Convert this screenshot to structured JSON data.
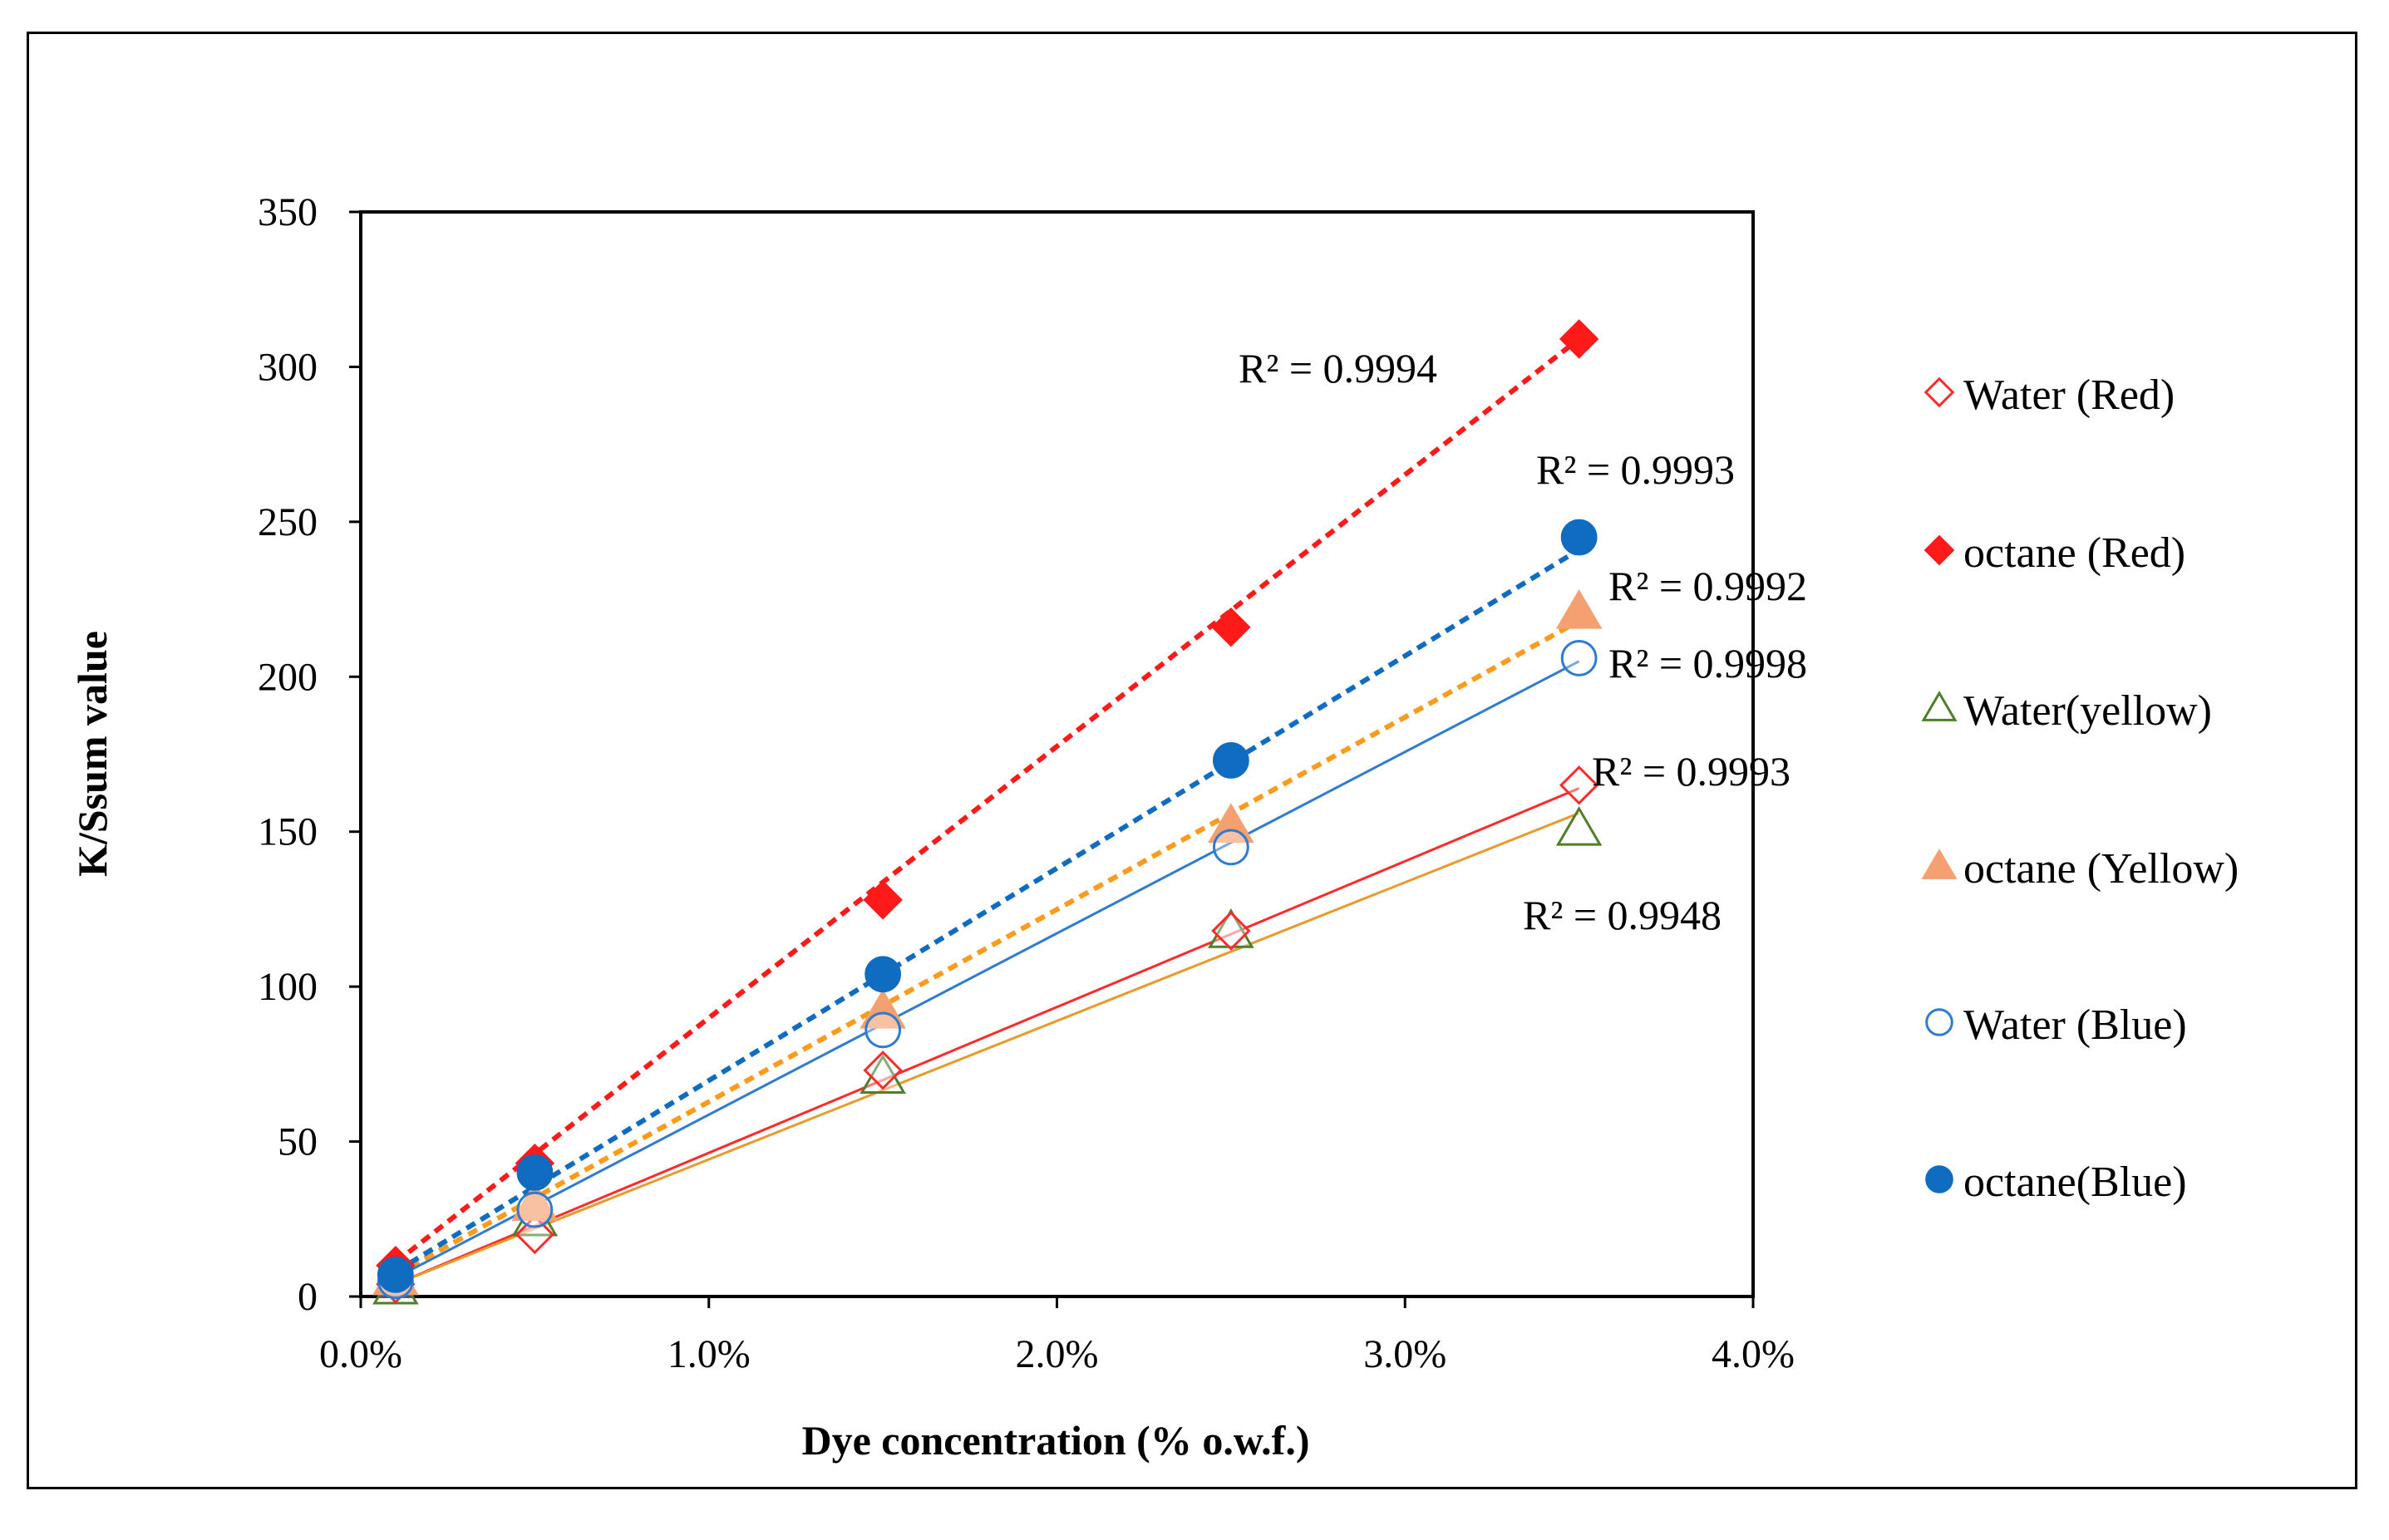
{
  "chart_data": {
    "type": "scatter",
    "title": "",
    "xlabel": "Dye concentration (% o.w.f.)",
    "ylabel": "K/Ssum value",
    "xlim": [
      0,
      0.04
    ],
    "ylim": [
      0,
      350
    ],
    "grid": false,
    "legend_position": "right",
    "x_ticks": [
      "0.0%",
      "1.0%",
      "2.0%",
      "3.0%",
      "4.0%"
    ],
    "x_tick_values": [
      0,
      0.01,
      0.02,
      0.03,
      0.04
    ],
    "y_ticks": [
      "0",
      "50",
      "100",
      "150",
      "200",
      "250",
      "300",
      "350"
    ],
    "y_tick_values": [
      0,
      50,
      100,
      150,
      200,
      250,
      300,
      350
    ],
    "x": [
      0.001,
      0.005,
      0.015,
      0.025,
      0.035
    ],
    "series": [
      {
        "name": "Water (Red)",
        "values": [
          4,
          20,
          73,
          118,
          165
        ],
        "marker": "diamond-open",
        "color": "#ff2b2b",
        "trend": "solid",
        "trend_line": [
          [
            0.001,
            4
          ],
          [
            0.035,
            164
          ]
        ],
        "r2": "R² = 0.9993"
      },
      {
        "name": "octane (Red)",
        "values": [
          10,
          43,
          128,
          216,
          309
        ],
        "marker": "diamond-filled",
        "color": "#ff1a1a",
        "trend": "dashed",
        "trend_line": [
          [
            0.001,
            11
          ],
          [
            0.035,
            309
          ]
        ],
        "r2": "R² = 0.9994"
      },
      {
        "name": "Water(yellow)",
        "values": [
          3,
          25,
          71,
          118,
          151
        ],
        "marker": "triangle-open",
        "color": "#4f7f2a",
        "trend": "solid",
        "trend_line": [
          [
            0.001,
            4
          ],
          [
            0.035,
            156
          ]
        ],
        "r2": "R² = 0.9948"
      },
      {
        "name": "octane (Yellow)",
        "values": [
          6,
          30,
          92,
          152,
          221
        ],
        "marker": "triangle-filled",
        "color": "#f4a070",
        "trend": "dashed",
        "trend_line": [
          [
            0.001,
            7
          ],
          [
            0.035,
            218
          ]
        ],
        "r2": "R² = 0.9992"
      },
      {
        "name": "Water (Blue)",
        "values": [
          5,
          28,
          86,
          145,
          206
        ],
        "marker": "circle-open",
        "color": "#2f7bd1",
        "trend": "solid",
        "trend_line": [
          [
            0.001,
            6
          ],
          [
            0.035,
            205
          ]
        ],
        "r2": "R² = 0.9998"
      },
      {
        "name": "octane(Blue)",
        "values": [
          7,
          40,
          104,
          173,
          245
        ],
        "marker": "circle-filled",
        "color": "#0f6cc0",
        "trend": "dashed",
        "trend_line": [
          [
            0.001,
            8
          ],
          [
            0.035,
            241
          ]
        ],
        "r2": "R² = 0.9993"
      }
    ],
    "colors": {
      "water_yellow_trend": "#e89a2c",
      "octane_yellow_trend": "#ff9a1a"
    }
  }
}
